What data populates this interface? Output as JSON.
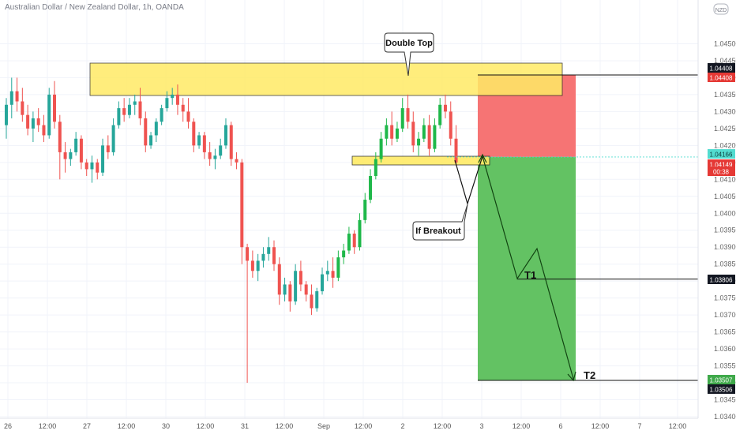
{
  "window": {
    "title": "Australian Dollar / New Zealand Dollar, 1h, OANDA",
    "currency_badge": "NZD"
  },
  "colors": {
    "up": "#26a69a",
    "up_bright": "#1fb84a",
    "down": "#ef5350",
    "zone_fill": "#ffeb66",
    "stop_zone": "#f56d6d",
    "target_zone": "#5bbf5b",
    "last_price_tag": "#e53935",
    "bid_tag": "#53dcd0"
  },
  "chart_data": {
    "type": "candlestick",
    "title": "Australian Dollar / New Zealand Dollar, 1h, OANDA",
    "xlabel": "",
    "ylabel": "",
    "ylim": [
      1.0344,
      1.0462
    ],
    "grid": true,
    "x_ticks": [
      "26",
      "12:00",
      "27",
      "12:00",
      "30",
      "12:00",
      "31",
      "12:00",
      "Sep",
      "12:00",
      "2",
      "12:00",
      "3",
      "12:00",
      "6",
      "12:00",
      "7",
      "12:00"
    ],
    "y_ticks": [
      "1.04500",
      "1.04450",
      "1.04400",
      "1.04350",
      "1.04300",
      "1.04250",
      "1.04200",
      "1.04150",
      "1.04100",
      "1.04050",
      "1.04000",
      "1.03950",
      "1.03900",
      "1.03850",
      "1.03800",
      "1.03750",
      "1.03700",
      "1.03650",
      "1.03600",
      "1.03550",
      "1.03500",
      "1.03450",
      "1.03400"
    ],
    "price_tags": [
      {
        "label": "1.04408",
        "kind": "line"
      },
      {
        "label": "1.04408",
        "kind": "stop"
      },
      {
        "label": "1.04166",
        "kind": "bid"
      },
      {
        "label": "1.04149",
        "kind": "last"
      },
      {
        "label": "00:38",
        "kind": "countdown"
      },
      {
        "label": "1.03806",
        "kind": "line"
      },
      {
        "label": "1.03507",
        "kind": "target"
      },
      {
        "label": "1.03506",
        "kind": "line"
      }
    ],
    "annotations": [
      {
        "text": "Double Top",
        "kind": "callout"
      },
      {
        "text": "If Breakout",
        "kind": "callout"
      },
      {
        "text": "T1",
        "kind": "label"
      },
      {
        "text": "T2",
        "kind": "label"
      }
    ],
    "levels": {
      "stop": 1.04408,
      "entry": 1.04166,
      "t1": 1.03806,
      "t2": 1.03507
    },
    "candles": [
      [
        1.0426,
        1.0434,
        1.0422,
        1.0432
      ],
      [
        1.0432,
        1.044,
        1.0428,
        1.0436
      ],
      [
        1.0436,
        1.044,
        1.043,
        1.0433
      ],
      [
        1.0433,
        1.0437,
        1.0427,
        1.0429
      ],
      [
        1.0429,
        1.0432,
        1.0423,
        1.0425
      ],
      [
        1.0425,
        1.043,
        1.0421,
        1.0428
      ],
      [
        1.0428,
        1.0431,
        1.0424,
        1.0426
      ],
      [
        1.0426,
        1.0429,
        1.0421,
        1.0423
      ],
      [
        1.0423,
        1.0437,
        1.0422,
        1.0435
      ],
      [
        1.0435,
        1.0439,
        1.0425,
        1.0427
      ],
      [
        1.0427,
        1.0429,
        1.041,
        1.0418
      ],
      [
        1.0418,
        1.0421,
        1.0412,
        1.0416
      ],
      [
        1.0416,
        1.0419,
        1.0414,
        1.0418
      ],
      [
        1.0418,
        1.0424,
        1.0417,
        1.0422
      ],
      [
        1.0422,
        1.0423,
        1.0413,
        1.0415
      ],
      [
        1.0415,
        1.0416,
        1.0411,
        1.0413
      ],
      [
        1.0413,
        1.0417,
        1.0409,
        1.0415
      ],
      [
        1.0415,
        1.0416,
        1.041,
        1.0412
      ],
      [
        1.0412,
        1.0422,
        1.0411,
        1.042
      ],
      [
        1.042,
        1.0423,
        1.0416,
        1.0418
      ],
      [
        1.0418,
        1.0428,
        1.0417,
        1.0426
      ],
      [
        1.0426,
        1.0433,
        1.0425,
        1.0431
      ],
      [
        1.0431,
        1.0434,
        1.0427,
        1.0429
      ],
      [
        1.0429,
        1.0434,
        1.0428,
        1.0432
      ],
      [
        1.0432,
        1.0435,
        1.0429,
        1.0433
      ],
      [
        1.0433,
        1.0437,
        1.0426,
        1.0428
      ],
      [
        1.0428,
        1.043,
        1.0418,
        1.042
      ],
      [
        1.042,
        1.0424,
        1.0419,
        1.0423
      ],
      [
        1.0423,
        1.0428,
        1.0421,
        1.0427
      ],
      [
        1.0427,
        1.0432,
        1.0426,
        1.0431
      ],
      [
        1.0431,
        1.0436,
        1.043,
        1.0434
      ],
      [
        1.0434,
        1.0437,
        1.0432,
        1.0435
      ],
      [
        1.0435,
        1.0438,
        1.0429,
        1.0432
      ],
      [
        1.0432,
        1.0434,
        1.0427,
        1.043
      ],
      [
        1.043,
        1.0434,
        1.0425,
        1.0427
      ],
      [
        1.0427,
        1.0428,
        1.0418,
        1.042
      ],
      [
        1.042,
        1.0424,
        1.0419,
        1.0423
      ],
      [
        1.0423,
        1.0424,
        1.0416,
        1.0418
      ],
      [
        1.0418,
        1.0421,
        1.0414,
        1.0416
      ],
      [
        1.0416,
        1.0419,
        1.0413,
        1.0417
      ],
      [
        1.0417,
        1.0422,
        1.0416,
        1.042
      ],
      [
        1.042,
        1.0428,
        1.0419,
        1.0426
      ],
      [
        1.0426,
        1.0427,
        1.0414,
        1.0416
      ],
      [
        1.0416,
        1.0418,
        1.0413,
        1.0415
      ],
      [
        1.0415,
        1.0416,
        1.0385,
        1.039
      ],
      [
        1.039,
        1.0391,
        1.035,
        1.0386
      ],
      [
        1.0386,
        1.0389,
        1.0381,
        1.0383
      ],
      [
        1.0383,
        1.0388,
        1.038,
        1.0386
      ],
      [
        1.0386,
        1.039,
        1.0384,
        1.0388
      ],
      [
        1.0388,
        1.0393,
        1.0386,
        1.039
      ],
      [
        1.039,
        1.0392,
        1.0383,
        1.0385
      ],
      [
        1.0385,
        1.0387,
        1.0373,
        1.0376
      ],
      [
        1.0376,
        1.0381,
        1.0374,
        1.0379
      ],
      [
        1.0379,
        1.038,
        1.0371,
        1.0374
      ],
      [
        1.0374,
        1.0385,
        1.0373,
        1.0383
      ],
      [
        1.0383,
        1.0386,
        1.0377,
        1.0379
      ],
      [
        1.0379,
        1.038,
        1.0374,
        1.0376
      ],
      [
        1.0376,
        1.0379,
        1.037,
        1.0372
      ],
      [
        1.0372,
        1.0378,
        1.0371,
        1.0377
      ],
      [
        1.0377,
        1.0384,
        1.0376,
        1.0382
      ],
      [
        1.0382,
        1.0386,
        1.038,
        1.0383
      ],
      [
        1.0383,
        1.0387,
        1.0378,
        1.0381
      ],
      [
        1.0381,
        1.0389,
        1.038,
        1.0387
      ],
      [
        1.0387,
        1.0391,
        1.0385,
        1.0389
      ],
      [
        1.0389,
        1.0396,
        1.0388,
        1.0394
      ],
      [
        1.0394,
        1.0395,
        1.0388,
        1.039
      ],
      [
        1.039,
        1.04,
        1.0389,
        1.0398
      ],
      [
        1.0398,
        1.0406,
        1.0397,
        1.0404
      ],
      [
        1.0404,
        1.0413,
        1.0403,
        1.0411
      ],
      [
        1.0411,
        1.0418,
        1.041,
        1.0416
      ],
      [
        1.0416,
        1.0424,
        1.0415,
        1.0422
      ],
      [
        1.0422,
        1.0428,
        1.042,
        1.0426
      ],
      [
        1.0426,
        1.043,
        1.042,
        1.0422
      ],
      [
        1.0422,
        1.0427,
        1.0421,
        1.0425
      ],
      [
        1.0425,
        1.0434,
        1.0424,
        1.0431
      ],
      [
        1.0431,
        1.0435,
        1.0425,
        1.0427
      ],
      [
        1.0427,
        1.043,
        1.0418,
        1.042
      ],
      [
        1.042,
        1.0424,
        1.0417,
        1.0422
      ],
      [
        1.0422,
        1.0428,
        1.0421,
        1.0426
      ],
      [
        1.0426,
        1.0429,
        1.0417,
        1.0419
      ],
      [
        1.0419,
        1.0428,
        1.0418,
        1.0426
      ],
      [
        1.0426,
        1.0434,
        1.0425,
        1.0432
      ],
      [
        1.0432,
        1.0435,
        1.0428,
        1.043
      ],
      [
        1.043,
        1.0433,
        1.042,
        1.0422
      ],
      [
        1.0422,
        1.0426,
        1.0414,
        1.0415
      ]
    ]
  }
}
